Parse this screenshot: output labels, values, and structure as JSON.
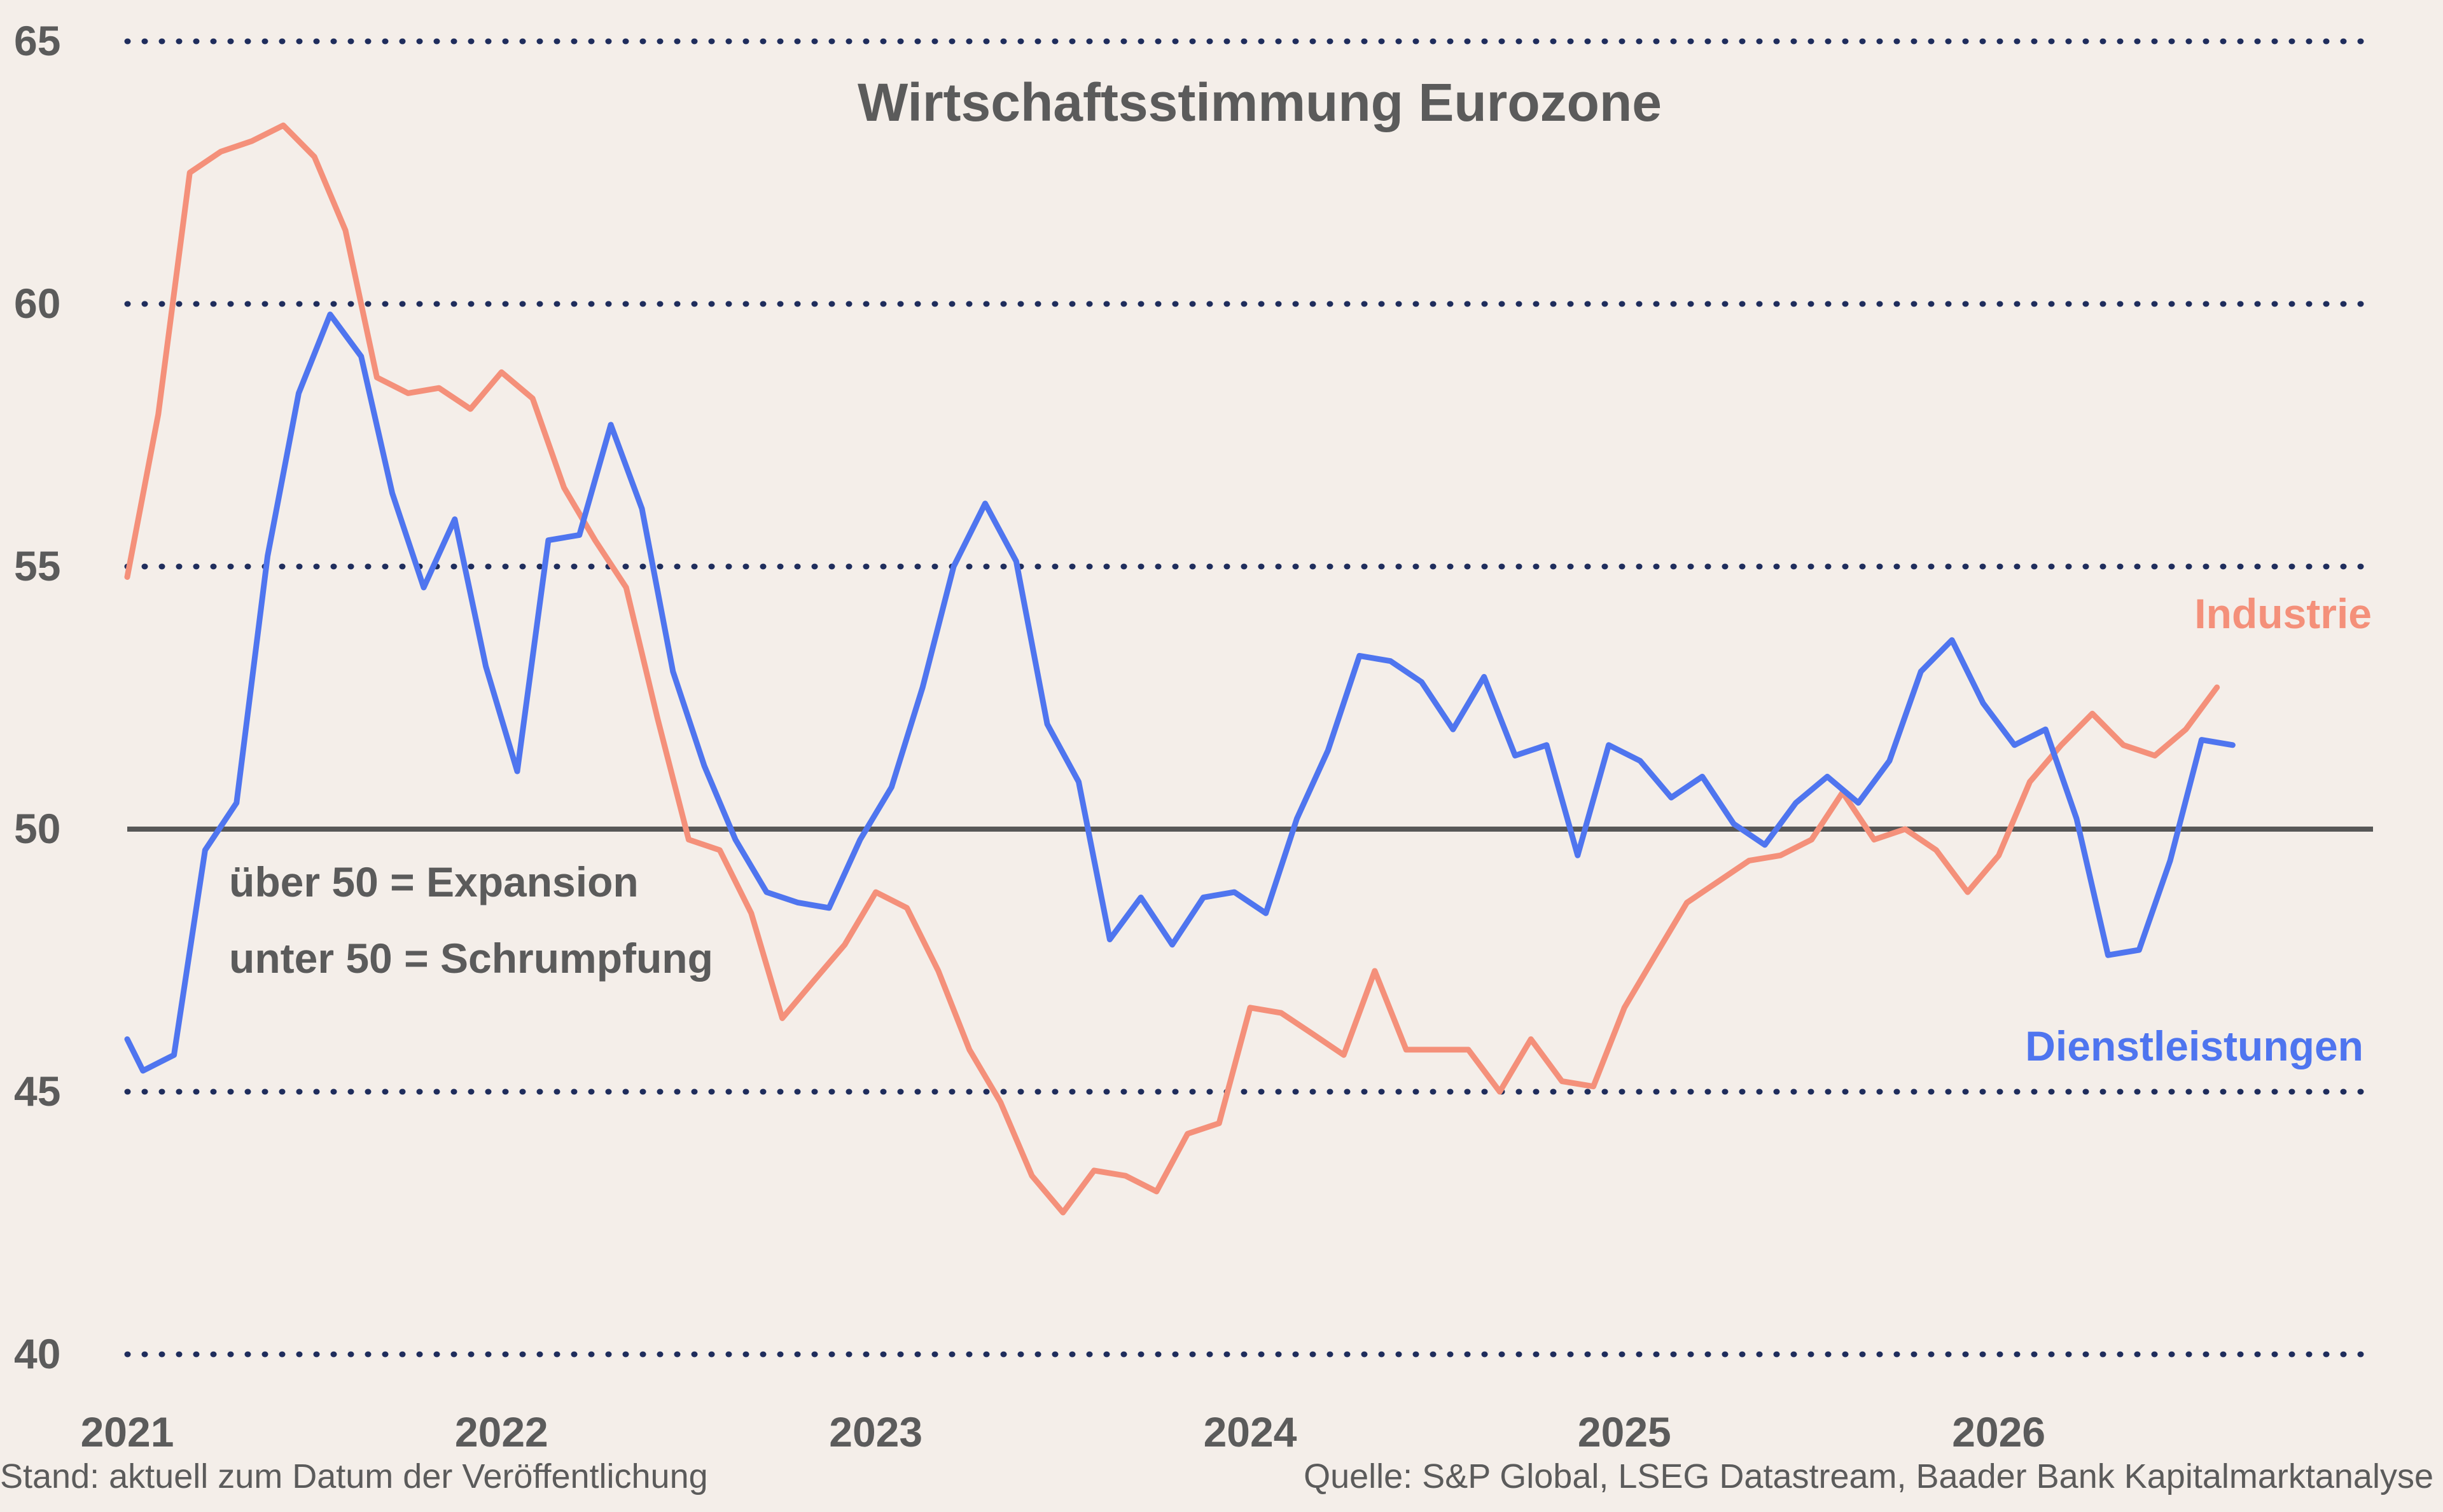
{
  "chart_data": {
    "type": "line",
    "title": "Wirtschaftsstimmung Eurozone",
    "ylim": [
      40,
      65
    ],
    "yticks": [
      "40",
      "45",
      "50",
      "55",
      "60",
      "65"
    ],
    "xlim": [
      2021.0,
      2027.0
    ],
    "xticks": [
      "2021",
      "2022",
      "2023",
      "2024",
      "2025",
      "2026"
    ],
    "grid": "horizontal dotted",
    "reference_line": 50,
    "annotations": [
      "über 50 = Expansion",
      "unter 50 = Schrumpfung"
    ],
    "series": [
      {
        "name": "Industrie",
        "color": "#f4907a",
        "x": [
          2021.0,
          2021.083,
          2021.167,
          2021.25,
          2021.333,
          2021.417,
          2021.5,
          2021.583,
          2021.667,
          2021.75,
          2021.833,
          2021.917,
          2022.0,
          2022.083,
          2022.167,
          2022.25,
          2022.333,
          2022.417,
          2022.5,
          2022.583,
          2022.667,
          2022.75,
          2022.833,
          2022.917,
          2023.0,
          2023.083,
          2023.167,
          2023.25,
          2023.333,
          2023.417,
          2023.5,
          2023.583,
          2023.667,
          2023.75,
          2023.833,
          2023.917,
          2024.0,
          2024.083,
          2024.167,
          2024.25,
          2024.333,
          2024.417,
          2024.5,
          2024.583,
          2024.667,
          2024.75,
          2024.833,
          2024.917,
          2025.0,
          2025.083,
          2025.167,
          2025.25,
          2025.333,
          2025.417,
          2025.5,
          2025.583,
          2025.667,
          2025.75,
          2025.833,
          2025.917,
          2026.0,
          2026.083,
          2026.167,
          2026.25,
          2026.333,
          2026.417,
          2026.5,
          2026.583
        ],
        "values": [
          54.8,
          57.9,
          62.5,
          62.9,
          63.1,
          63.4,
          62.8,
          61.4,
          58.6,
          58.3,
          58.4,
          58.0,
          58.7,
          58.2,
          56.5,
          55.5,
          54.6,
          52.1,
          49.8,
          49.6,
          48.4,
          46.4,
          47.1,
          47.8,
          48.8,
          48.5,
          47.3,
          45.8,
          44.8,
          43.4,
          42.7,
          43.5,
          43.4,
          43.1,
          44.2,
          44.4,
          46.6,
          46.5,
          46.1,
          45.7,
          47.3,
          45.8,
          45.8,
          45.8,
          45.0,
          46.0,
          45.2,
          45.1,
          46.6,
          47.6,
          48.6,
          49.0,
          49.4,
          49.5,
          49.8,
          50.7,
          49.8,
          50.0,
          49.6,
          48.8,
          49.5,
          50.9,
          51.6,
          52.2,
          51.6,
          51.4,
          51.9,
          52.7
        ]
      },
      {
        "name": "Dienstleistungen",
        "color": "#4f75ef",
        "x": [
          2021.0,
          2021.042,
          2021.125,
          2021.208,
          2021.292,
          2021.375,
          2021.458,
          2021.542,
          2021.625,
          2021.708,
          2021.792,
          2021.875,
          2021.958,
          2022.042,
          2022.125,
          2022.208,
          2022.292,
          2022.375,
          2022.458,
          2022.542,
          2022.625,
          2022.708,
          2022.792,
          2022.875,
          2022.958,
          2023.042,
          2023.125,
          2023.208,
          2023.292,
          2023.375,
          2023.458,
          2023.542,
          2023.625,
          2023.708,
          2023.792,
          2023.875,
          2023.958,
          2024.042,
          2024.125,
          2024.208,
          2024.292,
          2024.375,
          2024.458,
          2024.542,
          2024.625,
          2024.708,
          2024.792,
          2024.875,
          2024.958,
          2025.042,
          2025.125,
          2025.208,
          2025.292,
          2025.375,
          2025.458,
          2025.542,
          2025.625,
          2025.708,
          2025.792,
          2025.875,
          2025.958,
          2026.042,
          2026.125,
          2026.208,
          2026.292,
          2026.375,
          2026.458,
          2026.542,
          2026.625
        ],
        "values": [
          46.0,
          45.4,
          45.7,
          49.6,
          50.5,
          55.2,
          58.3,
          59.8,
          59.0,
          56.4,
          54.6,
          55.9,
          53.1,
          51.1,
          55.5,
          55.6,
          57.7,
          56.1,
          53.0,
          51.2,
          49.8,
          48.8,
          48.6,
          48.5,
          49.8,
          50.8,
          52.7,
          55.0,
          56.2,
          55.1,
          52.0,
          50.9,
          47.9,
          48.7,
          47.8,
          48.7,
          48.8,
          48.4,
          50.2,
          51.5,
          53.3,
          53.2,
          52.8,
          51.9,
          52.9,
          51.4,
          51.6,
          49.5,
          51.6,
          51.3,
          50.6,
          51.0,
          50.1,
          49.7,
          50.5,
          51.0,
          50.5,
          51.3,
          53.0,
          53.6,
          52.4,
          51.6,
          51.9,
          50.2,
          47.6,
          47.7,
          49.4,
          51.7,
          51.6
        ]
      }
    ],
    "footer_left": "Stand: aktuell zum Datum der Veröffentlichung",
    "footer_right": "Quelle: S&P Global, LSEG Datastream, Baader Bank Kapitalmarktanalyse"
  }
}
